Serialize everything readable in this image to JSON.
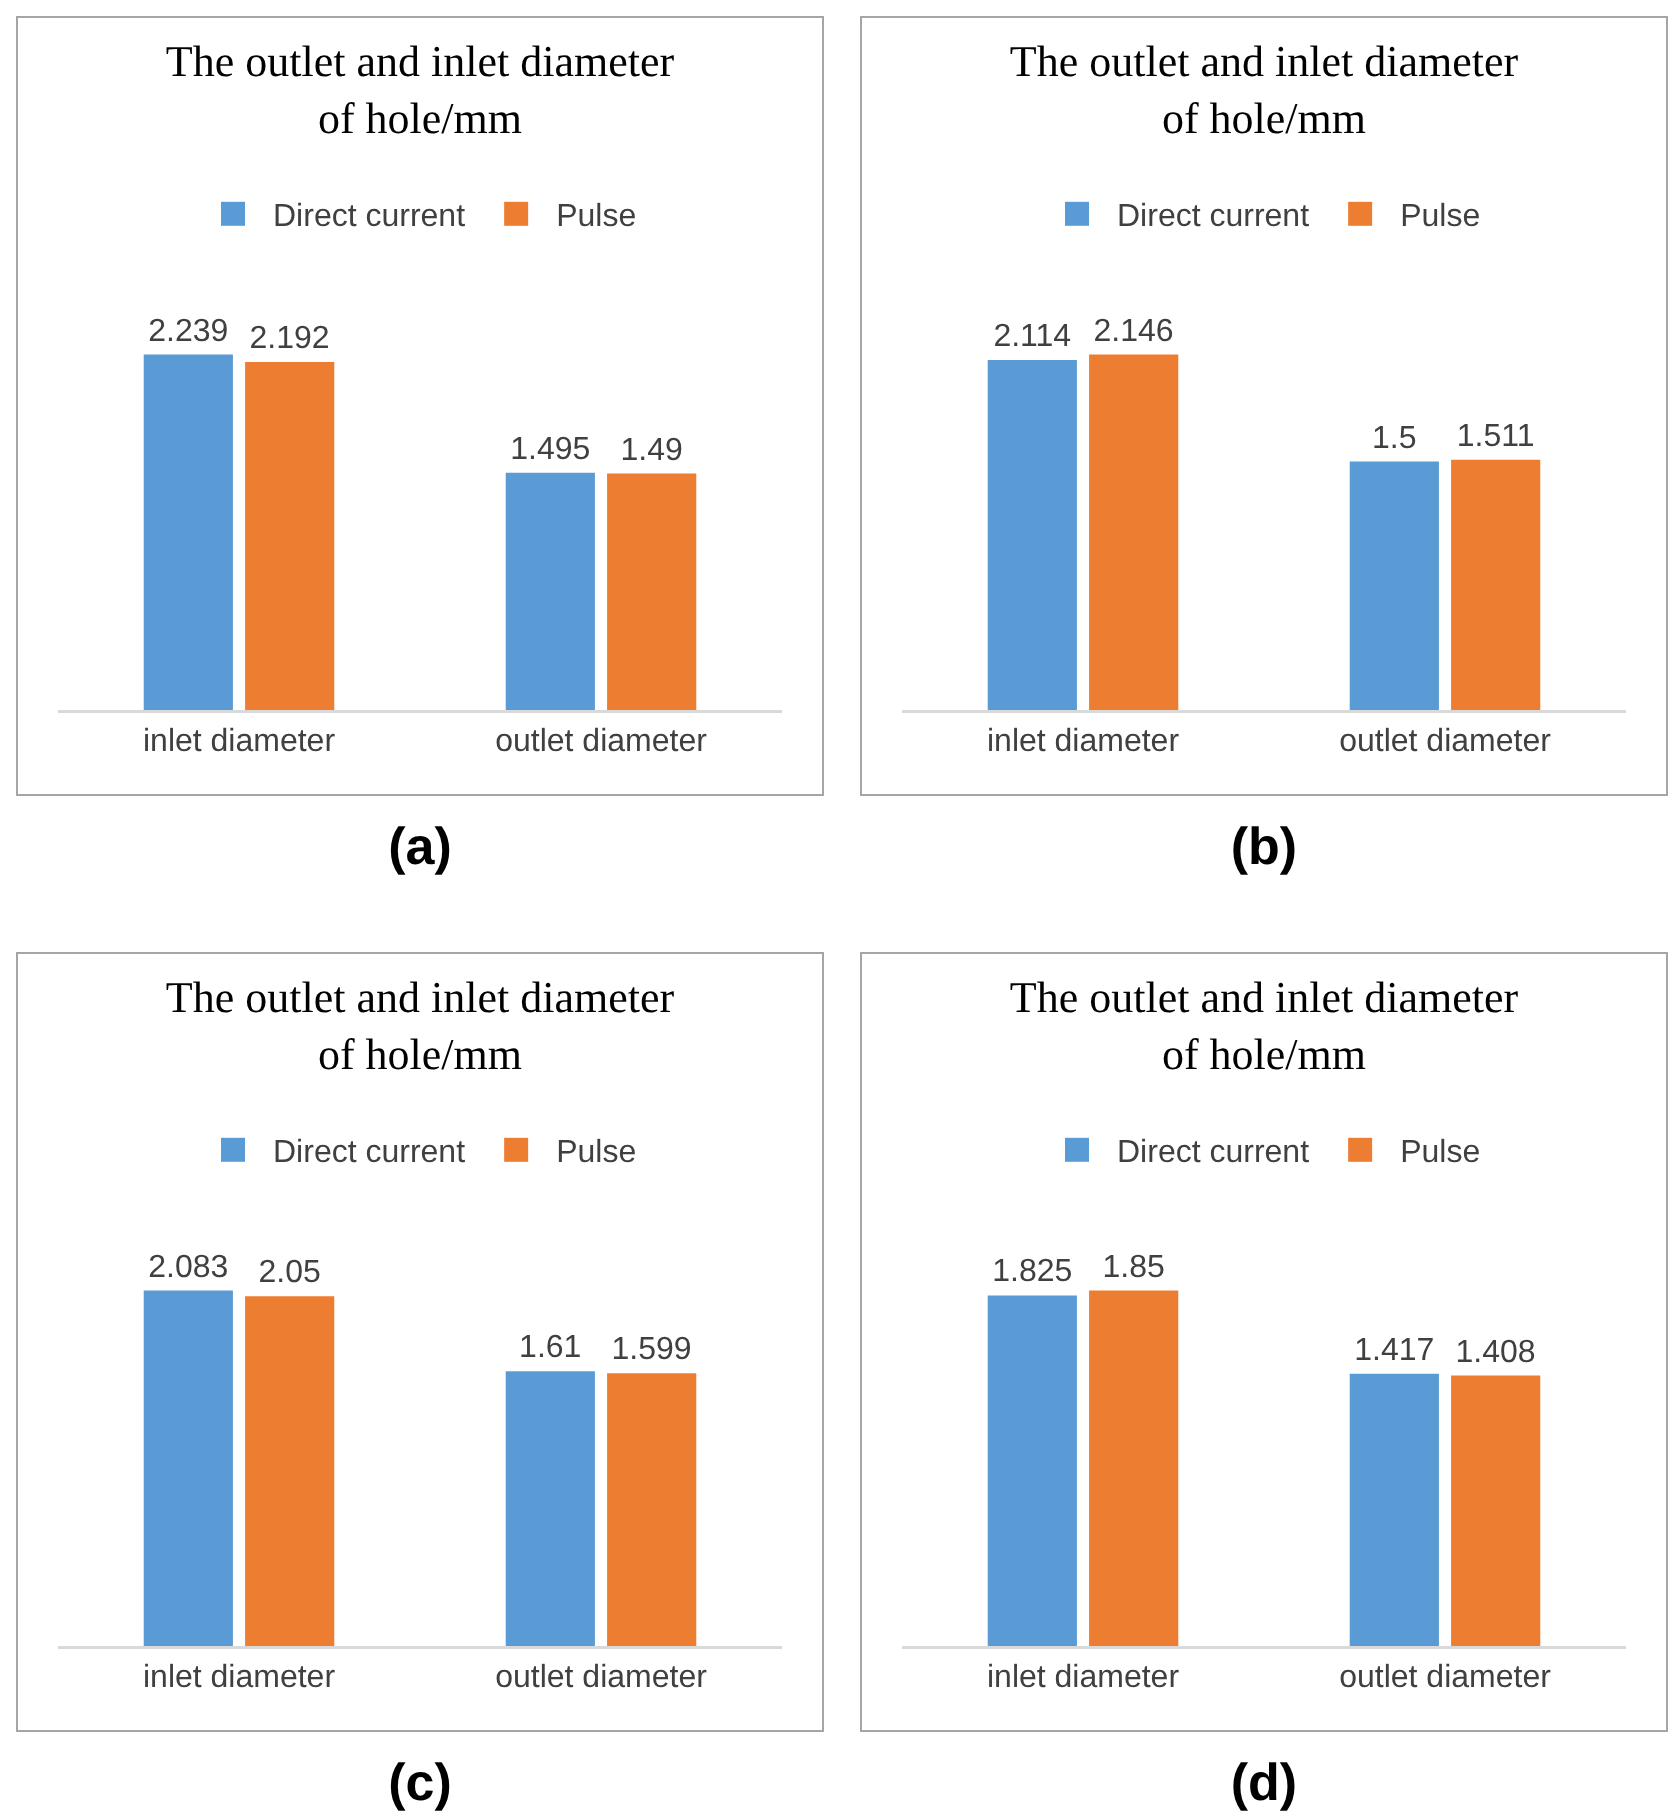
{
  "chart_data": [
    {
      "type": "bar",
      "title": "The outlet and inlet diameter\nof hole/mm",
      "categories": [
        "inlet diameter",
        "outlet diameter"
      ],
      "series": [
        {
          "name": "Direct current",
          "color": "#5b9bd5",
          "values": [
            2.239,
            1.495
          ]
        },
        {
          "name": "Pulse",
          "color": "#ed7d31",
          "values": [
            2.192,
            1.49
          ]
        }
      ],
      "data_labels": true,
      "grid": false,
      "legend": "top",
      "tick_labels": "x",
      "annotations": [
        "(a)"
      ]
    },
    {
      "type": "bar",
      "title": "The outlet and inlet diameter\nof hole/mm",
      "categories": [
        "inlet diameter",
        "outlet diameter"
      ],
      "series": [
        {
          "name": "Direct current",
          "color": "#5b9bd5",
          "values": [
            2.114,
            1.5
          ]
        },
        {
          "name": "Pulse",
          "color": "#ed7d31",
          "values": [
            2.146,
            1.511
          ]
        }
      ],
      "data_labels": true,
      "grid": false,
      "legend": "top",
      "tick_labels": "x",
      "annotations": [
        "(b)"
      ]
    },
    {
      "type": "bar",
      "title": "The outlet and inlet diameter\nof hole/mm",
      "categories": [
        "inlet diameter",
        "outlet diameter"
      ],
      "series": [
        {
          "name": "Direct current",
          "color": "#5b9bd5",
          "values": [
            2.083,
            1.61
          ]
        },
        {
          "name": "Pulse",
          "color": "#ed7d31",
          "values": [
            2.05,
            1.599
          ]
        }
      ],
      "data_labels": true,
      "grid": false,
      "legend": "top",
      "tick_labels": "x",
      "annotations": [
        "(c)"
      ]
    },
    {
      "type": "bar",
      "title": "The outlet and inlet diameter\nof hole/mm",
      "categories": [
        "inlet diameter",
        "outlet diameter"
      ],
      "series": [
        {
          "name": "Direct current",
          "color": "#5b9bd5",
          "values": [
            1.825,
            1.417
          ]
        },
        {
          "name": "Pulse",
          "color": "#ed7d31",
          "values": [
            1.85,
            1.408
          ]
        }
      ],
      "data_labels": true,
      "grid": false,
      "legend": "top",
      "tick_labels": "x",
      "annotations": [
        "(d)"
      ]
    }
  ]
}
